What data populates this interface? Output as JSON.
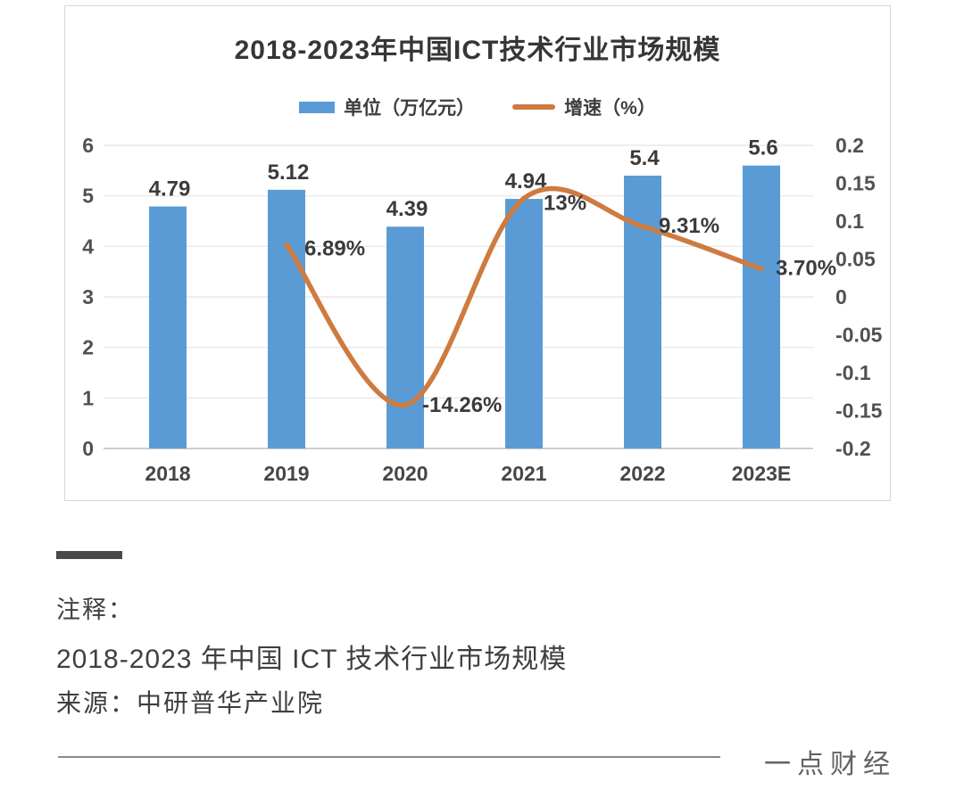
{
  "chart": {
    "title": "2018-2023年中国ICT技术行业市场规模",
    "legend": [
      {
        "label": "单位（万亿元）",
        "type": "bar",
        "color": "#5B9BD5"
      },
      {
        "label": "增速（%）",
        "type": "line",
        "color": "#CE7B40"
      }
    ]
  },
  "chart_data": {
    "type": "bar+line",
    "title": "2018-2023年中国ICT技术行业市场规模",
    "categories": [
      "2018",
      "2019",
      "2020",
      "2021",
      "2022",
      "2023E"
    ],
    "series": [
      {
        "name": "单位（万亿元）",
        "type": "bar",
        "axis": "left",
        "color": "#5B9BD5",
        "values": [
          4.79,
          5.12,
          4.39,
          4.94,
          5.4,
          5.6
        ],
        "labels": [
          "4.79",
          "5.12",
          "4.39",
          "4.94",
          "5.4",
          "5.6"
        ]
      },
      {
        "name": "增速（%）",
        "type": "line",
        "axis": "right",
        "color": "#CE7B40",
        "values": [
          null,
          0.0689,
          -0.1426,
          0.13,
          0.0931,
          0.037
        ],
        "labels": [
          null,
          "6.89%",
          "-14.26%",
          "13%",
          "9.31%",
          "3.70%"
        ]
      }
    ],
    "left_axis": {
      "min": 0,
      "max": 6,
      "tick_labels": [
        "6",
        "5",
        "4",
        "3",
        "2",
        "1",
        "0"
      ]
    },
    "right_axis": {
      "min": -0.2,
      "max": 0.2,
      "tick_labels": [
        "0.2",
        "0.15",
        "0.1",
        "0.05",
        "0",
        "-0.05",
        "-0.1",
        "-0.15",
        "-0.2"
      ]
    },
    "grid": true,
    "legend_position": "top"
  },
  "note": {
    "label": "注释：",
    "line1": "2018-2023 年中国 ICT 技术行业市场规模",
    "line2": "来源：中研普华产业院"
  },
  "footer": {
    "brand": "一点财经"
  }
}
